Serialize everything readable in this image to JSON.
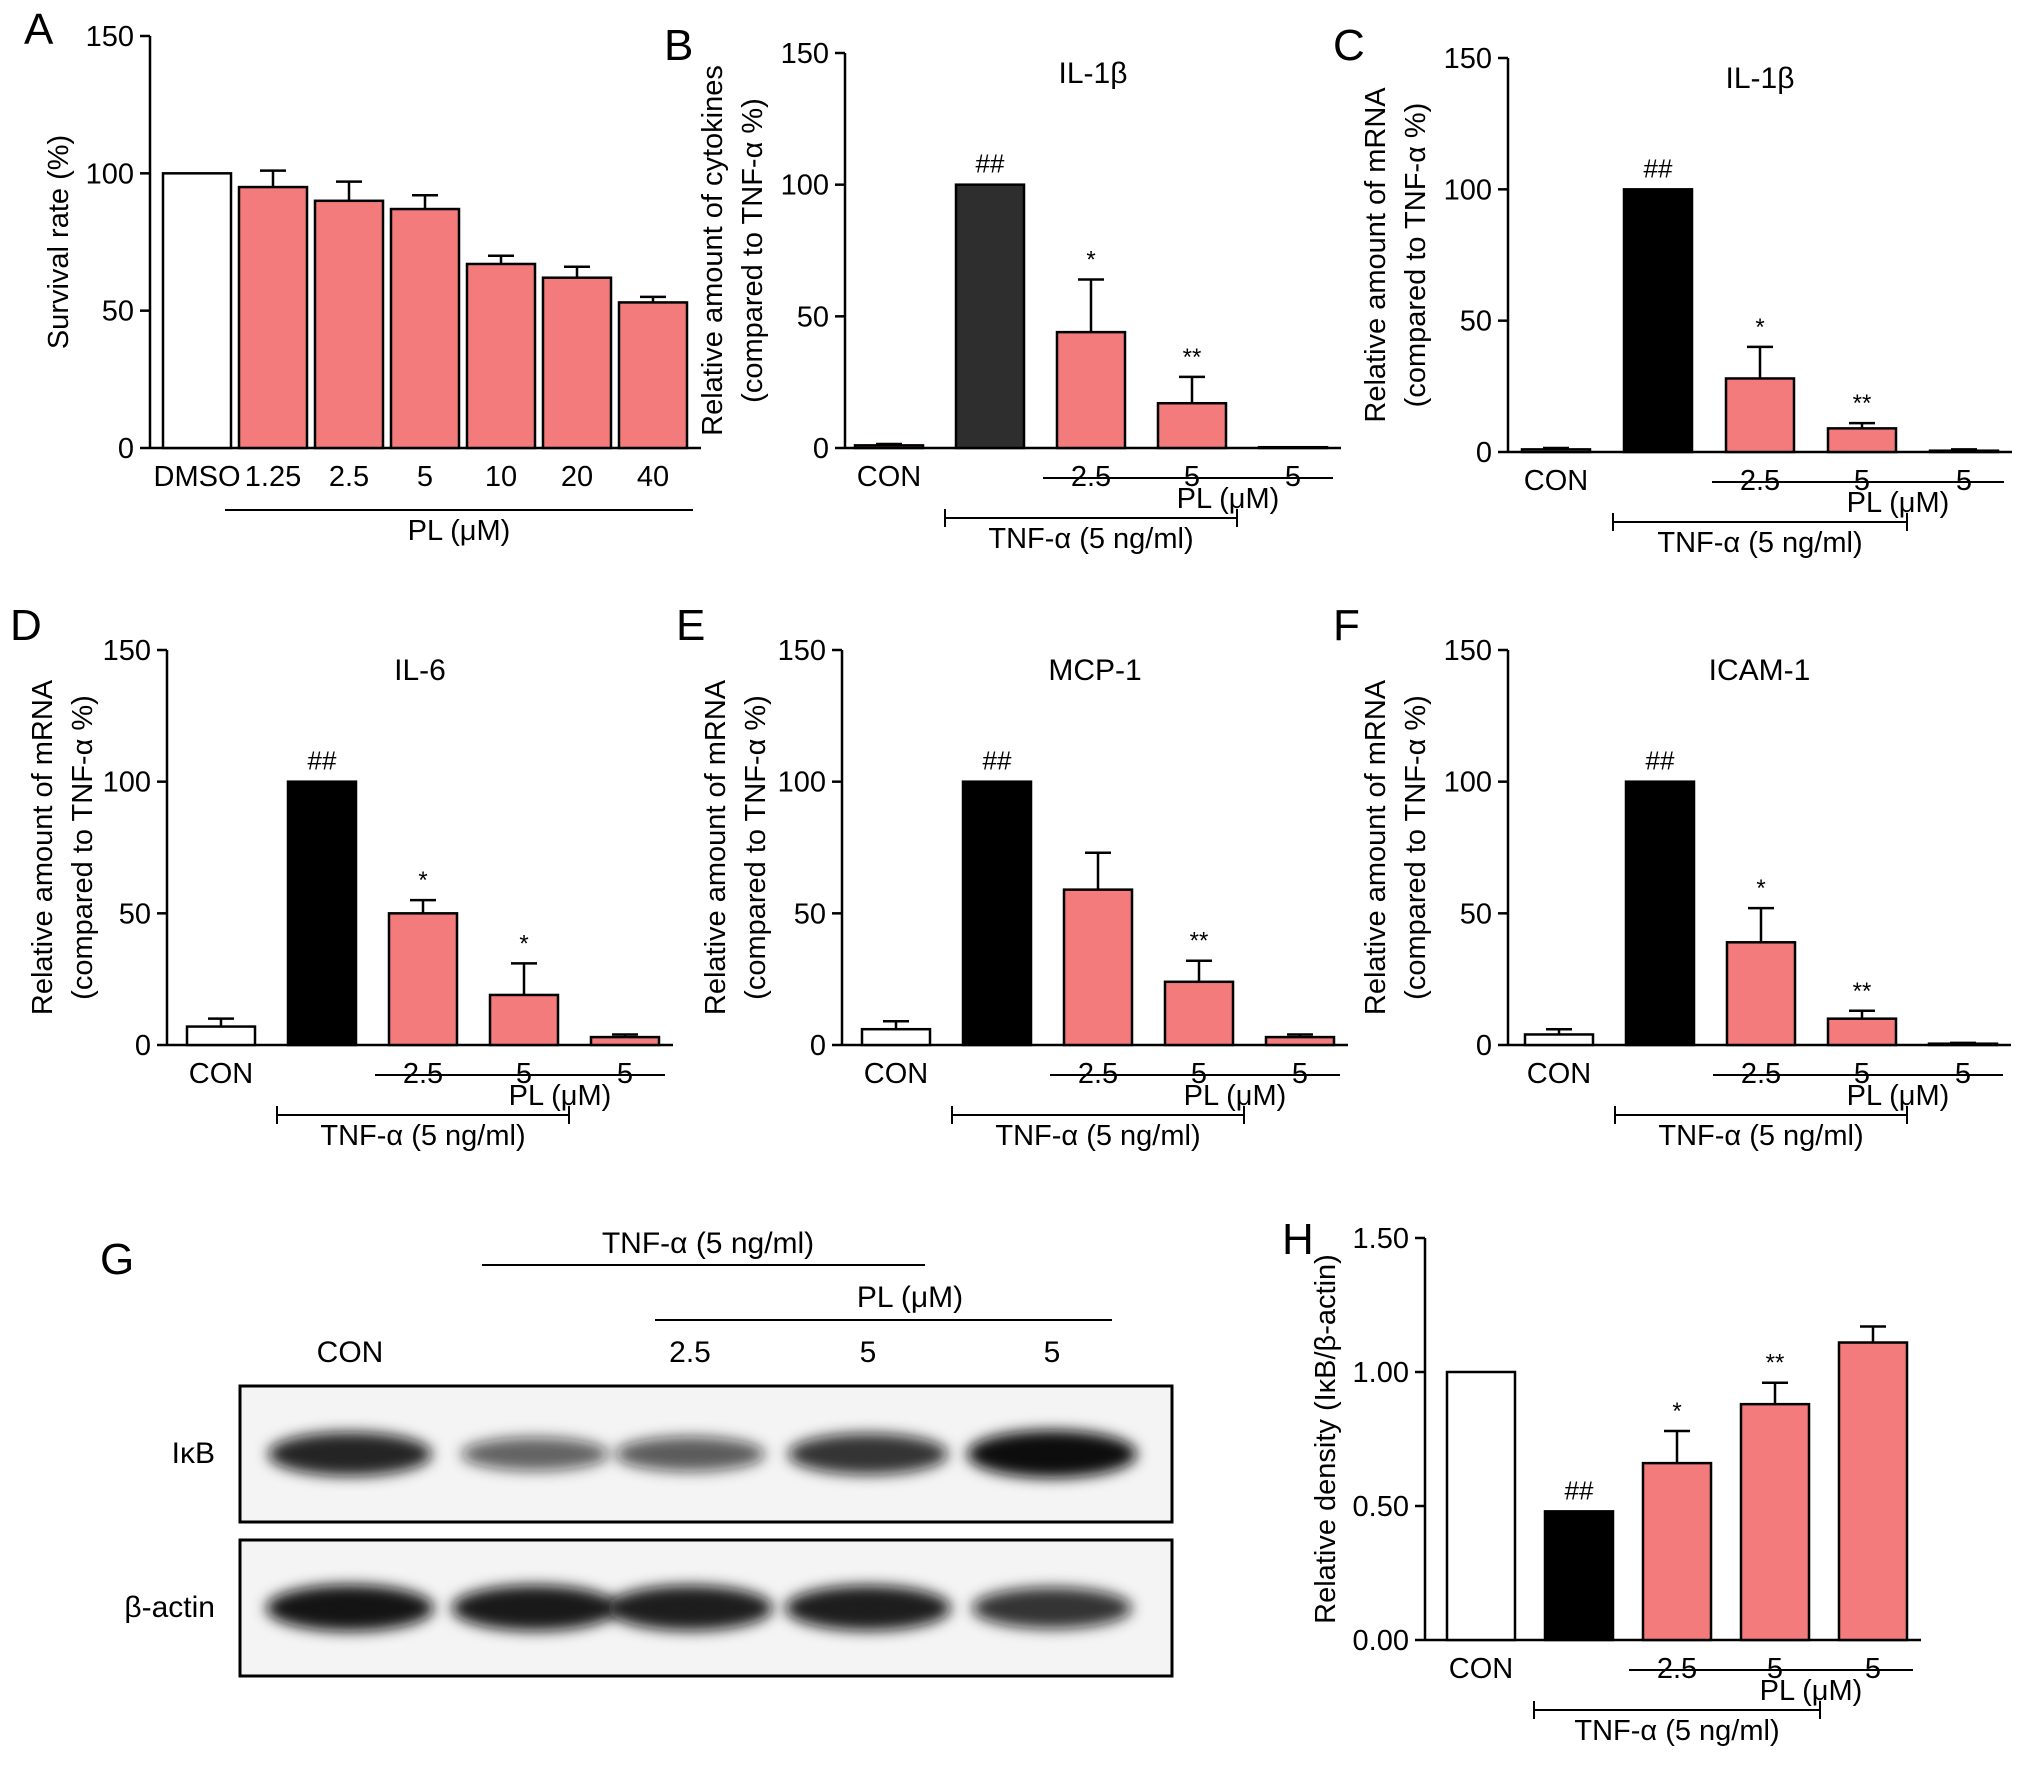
{
  "colors": {
    "pl_bar": "#F47B7B",
    "dark_bar_b": "#2E2E2E",
    "black_bar": "#000000",
    "open_bar": "#FFFFFF",
    "axis": "#000000"
  },
  "chart_data": [
    {
      "panel": "A",
      "type": "bar",
      "title": "",
      "ylabel": "Survival rate (%)",
      "ylim": [
        0,
        150
      ],
      "yticks": [
        "0",
        "50",
        "100",
        "150"
      ],
      "categories": [
        "DMSO",
        "1.25",
        "2.5",
        "5",
        "10",
        "20",
        "40"
      ],
      "values": [
        100,
        95,
        90,
        87,
        67,
        62,
        53
      ],
      "errors": [
        0,
        6,
        7,
        5,
        3,
        4,
        2
      ],
      "fills": [
        "open",
        "pl",
        "pl",
        "pl",
        "pl",
        "pl",
        "pl"
      ],
      "sig": [
        "",
        "",
        "",
        "",
        "",
        "",
        ""
      ],
      "group_lines": [
        {
          "label": "PL (μM)",
          "from": 1,
          "to": 6,
          "level": 1
        }
      ]
    },
    {
      "panel": "B",
      "type": "bar",
      "title": "IL-1β",
      "ylabel": "Relative amount of cytokines",
      "ylabel2": "(compared to TNF-α %)",
      "ylim": [
        0,
        150
      ],
      "yticks": [
        "0",
        "50",
        "100",
        "150"
      ],
      "categories": [
        "CON",
        "",
        "2.5",
        "5",
        "5"
      ],
      "values": [
        1,
        100,
        44,
        17,
        0.3
      ],
      "errors": [
        0.5,
        0,
        20,
        10,
        0
      ],
      "fills": [
        "pl",
        "dark",
        "pl",
        "pl",
        "pl"
      ],
      "sig": [
        "",
        "##",
        "*",
        "**",
        ""
      ],
      "group_lines": [
        {
          "label": "PL (μM)",
          "from": 2,
          "to": 4,
          "level": 1
        },
        {
          "label": "TNF-α (5 ng/ml)",
          "from": 1,
          "to": 3,
          "level": 2
        }
      ]
    },
    {
      "panel": "C",
      "type": "bar",
      "title": "IL-1β",
      "ylabel": "Relative amount of mRNA",
      "ylabel2": "(compared to TNF-α %)",
      "ylim": [
        0,
        150
      ],
      "yticks": [
        "0",
        "50",
        "100",
        "150"
      ],
      "categories": [
        "CON",
        "",
        "2.5",
        "5",
        "5"
      ],
      "values": [
        1,
        100,
        28,
        9,
        0.5
      ],
      "errors": [
        0.5,
        0,
        12,
        2,
        0.5
      ],
      "fills": [
        "open",
        "black",
        "pl",
        "pl",
        "pl"
      ],
      "sig": [
        "",
        "##",
        "*",
        "**",
        ""
      ],
      "group_lines": [
        {
          "label": "PL (μM)",
          "from": 2,
          "to": 4,
          "level": 1
        },
        {
          "label": "TNF-α (5 ng/ml)",
          "from": 1,
          "to": 3,
          "level": 2
        }
      ]
    },
    {
      "panel": "D",
      "type": "bar",
      "title": "IL-6",
      "ylabel": "Relative amount of mRNA",
      "ylabel2": "(compared to TNF-α %)",
      "ylim": [
        0,
        150
      ],
      "yticks": [
        "0",
        "50",
        "100",
        "150"
      ],
      "categories": [
        "CON",
        "",
        "2.5",
        "5",
        "5"
      ],
      "values": [
        7,
        100,
        50,
        19,
        3
      ],
      "errors": [
        3,
        0,
        5,
        12,
        1
      ],
      "fills": [
        "open",
        "black",
        "pl",
        "pl",
        "pl"
      ],
      "sig": [
        "",
        "##",
        "*",
        "*",
        ""
      ],
      "group_lines": [
        {
          "label": "PL (μM)",
          "from": 2,
          "to": 4,
          "level": 1
        },
        {
          "label": "TNF-α (5 ng/ml)",
          "from": 1,
          "to": 3,
          "level": 2
        }
      ]
    },
    {
      "panel": "E",
      "type": "bar",
      "title": "MCP-1",
      "ylabel": "Relative amount of mRNA",
      "ylabel2": "(compared to TNF-α %)",
      "ylim": [
        0,
        150
      ],
      "yticks": [
        "0",
        "50",
        "100",
        "150"
      ],
      "categories": [
        "CON",
        "",
        "2.5",
        "5",
        "5"
      ],
      "values": [
        6,
        100,
        59,
        24,
        3
      ],
      "errors": [
        3,
        0,
        14,
        8,
        1
      ],
      "fills": [
        "open",
        "black",
        "pl",
        "pl",
        "pl"
      ],
      "sig": [
        "",
        "##",
        "",
        "**",
        ""
      ],
      "group_lines": [
        {
          "label": "PL (μM)",
          "from": 2,
          "to": 4,
          "level": 1
        },
        {
          "label": "TNF-α (5 ng/ml)",
          "from": 1,
          "to": 3,
          "level": 2
        }
      ]
    },
    {
      "panel": "F",
      "type": "bar",
      "title": "ICAM-1",
      "ylabel": "Relative amount of mRNA",
      "ylabel2": "(compared to TNF-α %)",
      "ylim": [
        0,
        150
      ],
      "yticks": [
        "0",
        "50",
        "100",
        "150"
      ],
      "categories": [
        "CON",
        "",
        "2.5",
        "5",
        "5"
      ],
      "values": [
        4,
        100,
        39,
        10,
        0.5
      ],
      "errors": [
        2,
        0,
        13,
        3,
        0.3
      ],
      "fills": [
        "open",
        "black",
        "pl",
        "pl",
        "pl"
      ],
      "sig": [
        "",
        "##",
        "*",
        "**",
        ""
      ],
      "group_lines": [
        {
          "label": "PL (μM)",
          "from": 2,
          "to": 4,
          "level": 1
        },
        {
          "label": "TNF-α (5 ng/ml)",
          "from": 1,
          "to": 3,
          "level": 2
        }
      ]
    },
    {
      "panel": "H",
      "type": "bar",
      "title": "",
      "ylabel": "Relative density (IκB/β-actin)",
      "ylim": [
        0,
        1.5
      ],
      "yticks": [
        "0.00",
        "0.50",
        "1.00",
        "1.50"
      ],
      "categories": [
        "CON",
        "",
        "2.5",
        "5",
        "5"
      ],
      "values": [
        1.0,
        0.48,
        0.66,
        0.88,
        1.11
      ],
      "errors": [
        0,
        0,
        0.12,
        0.08,
        0.06
      ],
      "fills": [
        "open",
        "black",
        "pl",
        "pl",
        "pl"
      ],
      "sig": [
        "",
        "##",
        "*",
        "**",
        ""
      ],
      "group_lines": [
        {
          "label": "PL (μM)",
          "from": 2,
          "to": 4,
          "level": 1
        },
        {
          "label": "TNF-α (5 ng/ml)",
          "from": 1,
          "to": 3,
          "level": 2
        }
      ]
    }
  ],
  "blot": {
    "panel": "G",
    "tnf_label": "TNF-α (5 ng/ml)",
    "pl_label": "PL (μM)",
    "lane_labels": [
      "CON",
      "",
      "2.5",
      "5",
      "5"
    ],
    "rows": [
      {
        "label": "IκB",
        "intensities": [
          0.85,
          0.45,
          0.5,
          0.75,
          1.0
        ]
      },
      {
        "label": "β-actin",
        "intensities": [
          0.95,
          0.92,
          0.9,
          0.9,
          0.75
        ]
      }
    ]
  }
}
